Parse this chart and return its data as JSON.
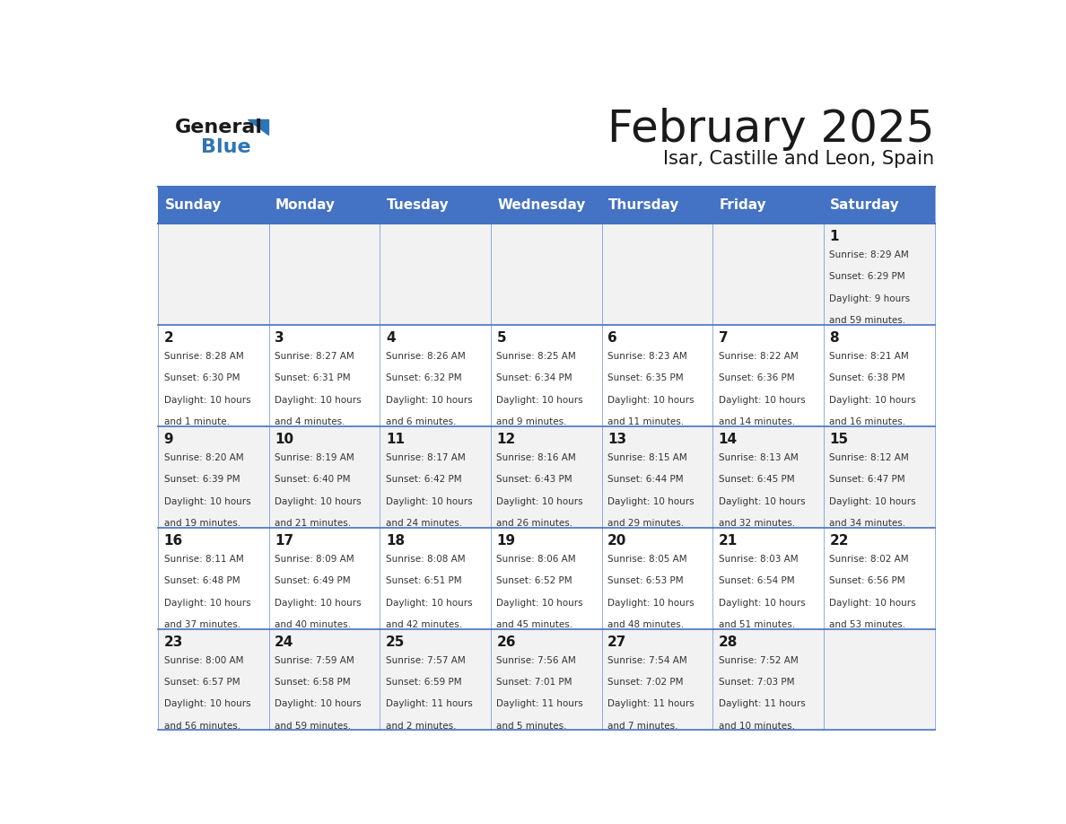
{
  "title": "February 2025",
  "subtitle": "Isar, Castille and Leon, Spain",
  "header_bg_color": "#4472C4",
  "header_text_color": "#FFFFFF",
  "cell_bg_color_odd": "#F2F2F2",
  "cell_bg_color_even": "#FFFFFF",
  "day_headers": [
    "Sunday",
    "Monday",
    "Tuesday",
    "Wednesday",
    "Thursday",
    "Friday",
    "Saturday"
  ],
  "title_color": "#1a1a1a",
  "subtitle_color": "#1a1a1a",
  "cell_text_color": "#333333",
  "day_num_color": "#1a1a1a",
  "line_color": "#4472C4",
  "logo_general_color": "#1a1a1a",
  "logo_blue_color": "#2E75B6",
  "weeks": [
    [
      null,
      null,
      null,
      null,
      null,
      null,
      1
    ],
    [
      2,
      3,
      4,
      5,
      6,
      7,
      8
    ],
    [
      9,
      10,
      11,
      12,
      13,
      14,
      15
    ],
    [
      16,
      17,
      18,
      19,
      20,
      21,
      22
    ],
    [
      23,
      24,
      25,
      26,
      27,
      28,
      null
    ]
  ],
  "cell_data": {
    "1": {
      "sunrise": "8:29 AM",
      "sunset": "6:29 PM",
      "daylight": "9 hours and 59 minutes."
    },
    "2": {
      "sunrise": "8:28 AM",
      "sunset": "6:30 PM",
      "daylight": "10 hours and 1 minute."
    },
    "3": {
      "sunrise": "8:27 AM",
      "sunset": "6:31 PM",
      "daylight": "10 hours and 4 minutes."
    },
    "4": {
      "sunrise": "8:26 AM",
      "sunset": "6:32 PM",
      "daylight": "10 hours and 6 minutes."
    },
    "5": {
      "sunrise": "8:25 AM",
      "sunset": "6:34 PM",
      "daylight": "10 hours and 9 minutes."
    },
    "6": {
      "sunrise": "8:23 AM",
      "sunset": "6:35 PM",
      "daylight": "10 hours and 11 minutes."
    },
    "7": {
      "sunrise": "8:22 AM",
      "sunset": "6:36 PM",
      "daylight": "10 hours and 14 minutes."
    },
    "8": {
      "sunrise": "8:21 AM",
      "sunset": "6:38 PM",
      "daylight": "10 hours and 16 minutes."
    },
    "9": {
      "sunrise": "8:20 AM",
      "sunset": "6:39 PM",
      "daylight": "10 hours and 19 minutes."
    },
    "10": {
      "sunrise": "8:19 AM",
      "sunset": "6:40 PM",
      "daylight": "10 hours and 21 minutes."
    },
    "11": {
      "sunrise": "8:17 AM",
      "sunset": "6:42 PM",
      "daylight": "10 hours and 24 minutes."
    },
    "12": {
      "sunrise": "8:16 AM",
      "sunset": "6:43 PM",
      "daylight": "10 hours and 26 minutes."
    },
    "13": {
      "sunrise": "8:15 AM",
      "sunset": "6:44 PM",
      "daylight": "10 hours and 29 minutes."
    },
    "14": {
      "sunrise": "8:13 AM",
      "sunset": "6:45 PM",
      "daylight": "10 hours and 32 minutes."
    },
    "15": {
      "sunrise": "8:12 AM",
      "sunset": "6:47 PM",
      "daylight": "10 hours and 34 minutes."
    },
    "16": {
      "sunrise": "8:11 AM",
      "sunset": "6:48 PM",
      "daylight": "10 hours and 37 minutes."
    },
    "17": {
      "sunrise": "8:09 AM",
      "sunset": "6:49 PM",
      "daylight": "10 hours and 40 minutes."
    },
    "18": {
      "sunrise": "8:08 AM",
      "sunset": "6:51 PM",
      "daylight": "10 hours and 42 minutes."
    },
    "19": {
      "sunrise": "8:06 AM",
      "sunset": "6:52 PM",
      "daylight": "10 hours and 45 minutes."
    },
    "20": {
      "sunrise": "8:05 AM",
      "sunset": "6:53 PM",
      "daylight": "10 hours and 48 minutes."
    },
    "21": {
      "sunrise": "8:03 AM",
      "sunset": "6:54 PM",
      "daylight": "10 hours and 51 minutes."
    },
    "22": {
      "sunrise": "8:02 AM",
      "sunset": "6:56 PM",
      "daylight": "10 hours and 53 minutes."
    },
    "23": {
      "sunrise": "8:00 AM",
      "sunset": "6:57 PM",
      "daylight": "10 hours and 56 minutes."
    },
    "24": {
      "sunrise": "7:59 AM",
      "sunset": "6:58 PM",
      "daylight": "10 hours and 59 minutes."
    },
    "25": {
      "sunrise": "7:57 AM",
      "sunset": "6:59 PM",
      "daylight": "11 hours and 2 minutes."
    },
    "26": {
      "sunrise": "7:56 AM",
      "sunset": "7:01 PM",
      "daylight": "11 hours and 5 minutes."
    },
    "27": {
      "sunrise": "7:54 AM",
      "sunset": "7:02 PM",
      "daylight": "11 hours and 7 minutes."
    },
    "28": {
      "sunrise": "7:52 AM",
      "sunset": "7:03 PM",
      "daylight": "11 hours and 10 minutes."
    }
  }
}
